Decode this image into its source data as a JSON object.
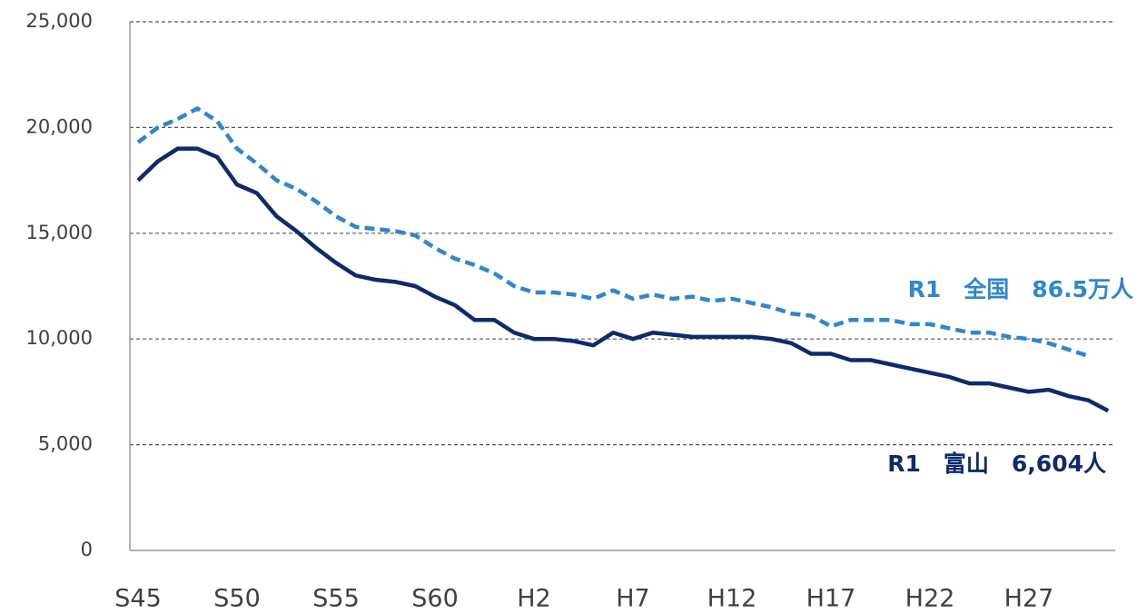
{
  "chart_data": {
    "type": "line",
    "categories": [
      "S45",
      null,
      null,
      null,
      null,
      "S50",
      null,
      null,
      null,
      null,
      "S55",
      null,
      null,
      null,
      null,
      "S60",
      null,
      null,
      null,
      null,
      "H2",
      null,
      null,
      null,
      null,
      "H7",
      null,
      null,
      null,
      null,
      "H12",
      null,
      null,
      null,
      null,
      "H17",
      null,
      null,
      null,
      null,
      "H22",
      null,
      null,
      null,
      null,
      "H27",
      null,
      null,
      null,
      null
    ],
    "series": [
      {
        "name": "全国",
        "color": "#2f86d0",
        "dashed": true,
        "values": [
          19300,
          20000,
          20400,
          20900,
          20300,
          19000,
          18300,
          17500,
          17100,
          16500,
          15800,
          15300,
          15200,
          15100,
          14900,
          14300,
          13800,
          13500,
          13100,
          12500,
          12200,
          12200,
          12100,
          11900,
          12300,
          11900,
          12100,
          11900,
          12000,
          11800,
          11900,
          11700,
          11500,
          11200,
          11100,
          10600,
          10900,
          10900,
          10900,
          10700,
          10700,
          10500,
          10300,
          10300,
          10100,
          10000,
          9800,
          9500,
          9200,
          null
        ]
      },
      {
        "name": "富山",
        "color": "#0d2a6b",
        "dashed": false,
        "values": [
          17500,
          18400,
          19000,
          19000,
          18600,
          17300,
          16900,
          15800,
          15100,
          14300,
          13600,
          13000,
          12800,
          12700,
          12500,
          12000,
          11600,
          10900,
          10900,
          10300,
          10000,
          10000,
          9900,
          9700,
          10300,
          10000,
          10300,
          10200,
          10100,
          10100,
          10100,
          10100,
          10000,
          9800,
          9300,
          9300,
          9000,
          9000,
          8800,
          8600,
          8400,
          8200,
          7900,
          7900,
          7700,
          7500,
          7600,
          7300,
          7100,
          6604
        ]
      }
    ],
    "annotations": [
      "R1　全国　86.5万人",
      "R1　富山　6,604人"
    ],
    "ylim": [
      0,
      25000
    ],
    "yticks": [
      0,
      {
        "value": 5000,
        "label": "5,000"
      },
      {
        "value": 10000,
        "label": "10,000"
      },
      {
        "value": 15000,
        "label": "15,000"
      },
      {
        "value": 20000,
        "label": "20,000"
      },
      {
        "value": 25000,
        "label": "25,000"
      }
    ],
    "grid": true
  }
}
